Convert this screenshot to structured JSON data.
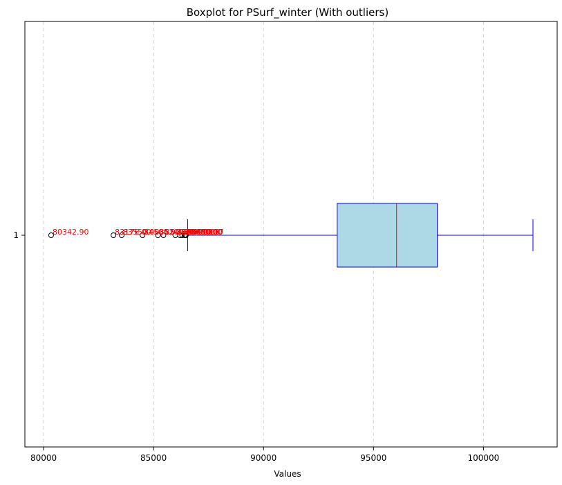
{
  "chart_data": {
    "type": "boxplot",
    "title": "Boxplot for PSurf_winter (With outliers)",
    "xlabel": "Values",
    "ylabel": "",
    "orientation": "horizontal",
    "xlim": [
      79150,
      103350
    ],
    "x_ticks": [
      80000,
      85000,
      90000,
      95000,
      100000
    ],
    "x_tick_labels": [
      "80000",
      "85000",
      "90000",
      "95000",
      "100000"
    ],
    "y_tick_labels": [
      "1"
    ],
    "grid": "x-axis dashed",
    "colors": {
      "box_fill": "#add8e6",
      "box_edge": "#0000ff",
      "median": "#ff0000",
      "whisker": "#0000ff",
      "outlier_label": "#ff0000",
      "grid": "#d3d3d3"
    },
    "box": {
      "category": "1",
      "whisker_low": 86550,
      "q1": 93350,
      "median": 96050,
      "q3": 97900,
      "whisker_high": 102250
    },
    "outliers": [
      {
        "value": 80342.9,
        "label": "80342.90"
      },
      {
        "value": 83176.0,
        "label": "83176.00"
      },
      {
        "value": 83550.0,
        "label": "83550.00"
      },
      {
        "value": 84500.0,
        "label": "84500.00"
      },
      {
        "value": 85200.0,
        "label": "85200.00"
      },
      {
        "value": 85450.0,
        "label": "85450.00"
      },
      {
        "value": 85990.0,
        "label": "85990.00"
      },
      {
        "value": 86200.0,
        "label": "86200.00"
      },
      {
        "value": 86300.0,
        "label": "86300.00"
      },
      {
        "value": 86410.0,
        "label": "86410.00"
      },
      {
        "value": 86450.0,
        "label": "86450.00"
      },
      {
        "value": 86470.17,
        "label": "86470.17"
      }
    ]
  }
}
